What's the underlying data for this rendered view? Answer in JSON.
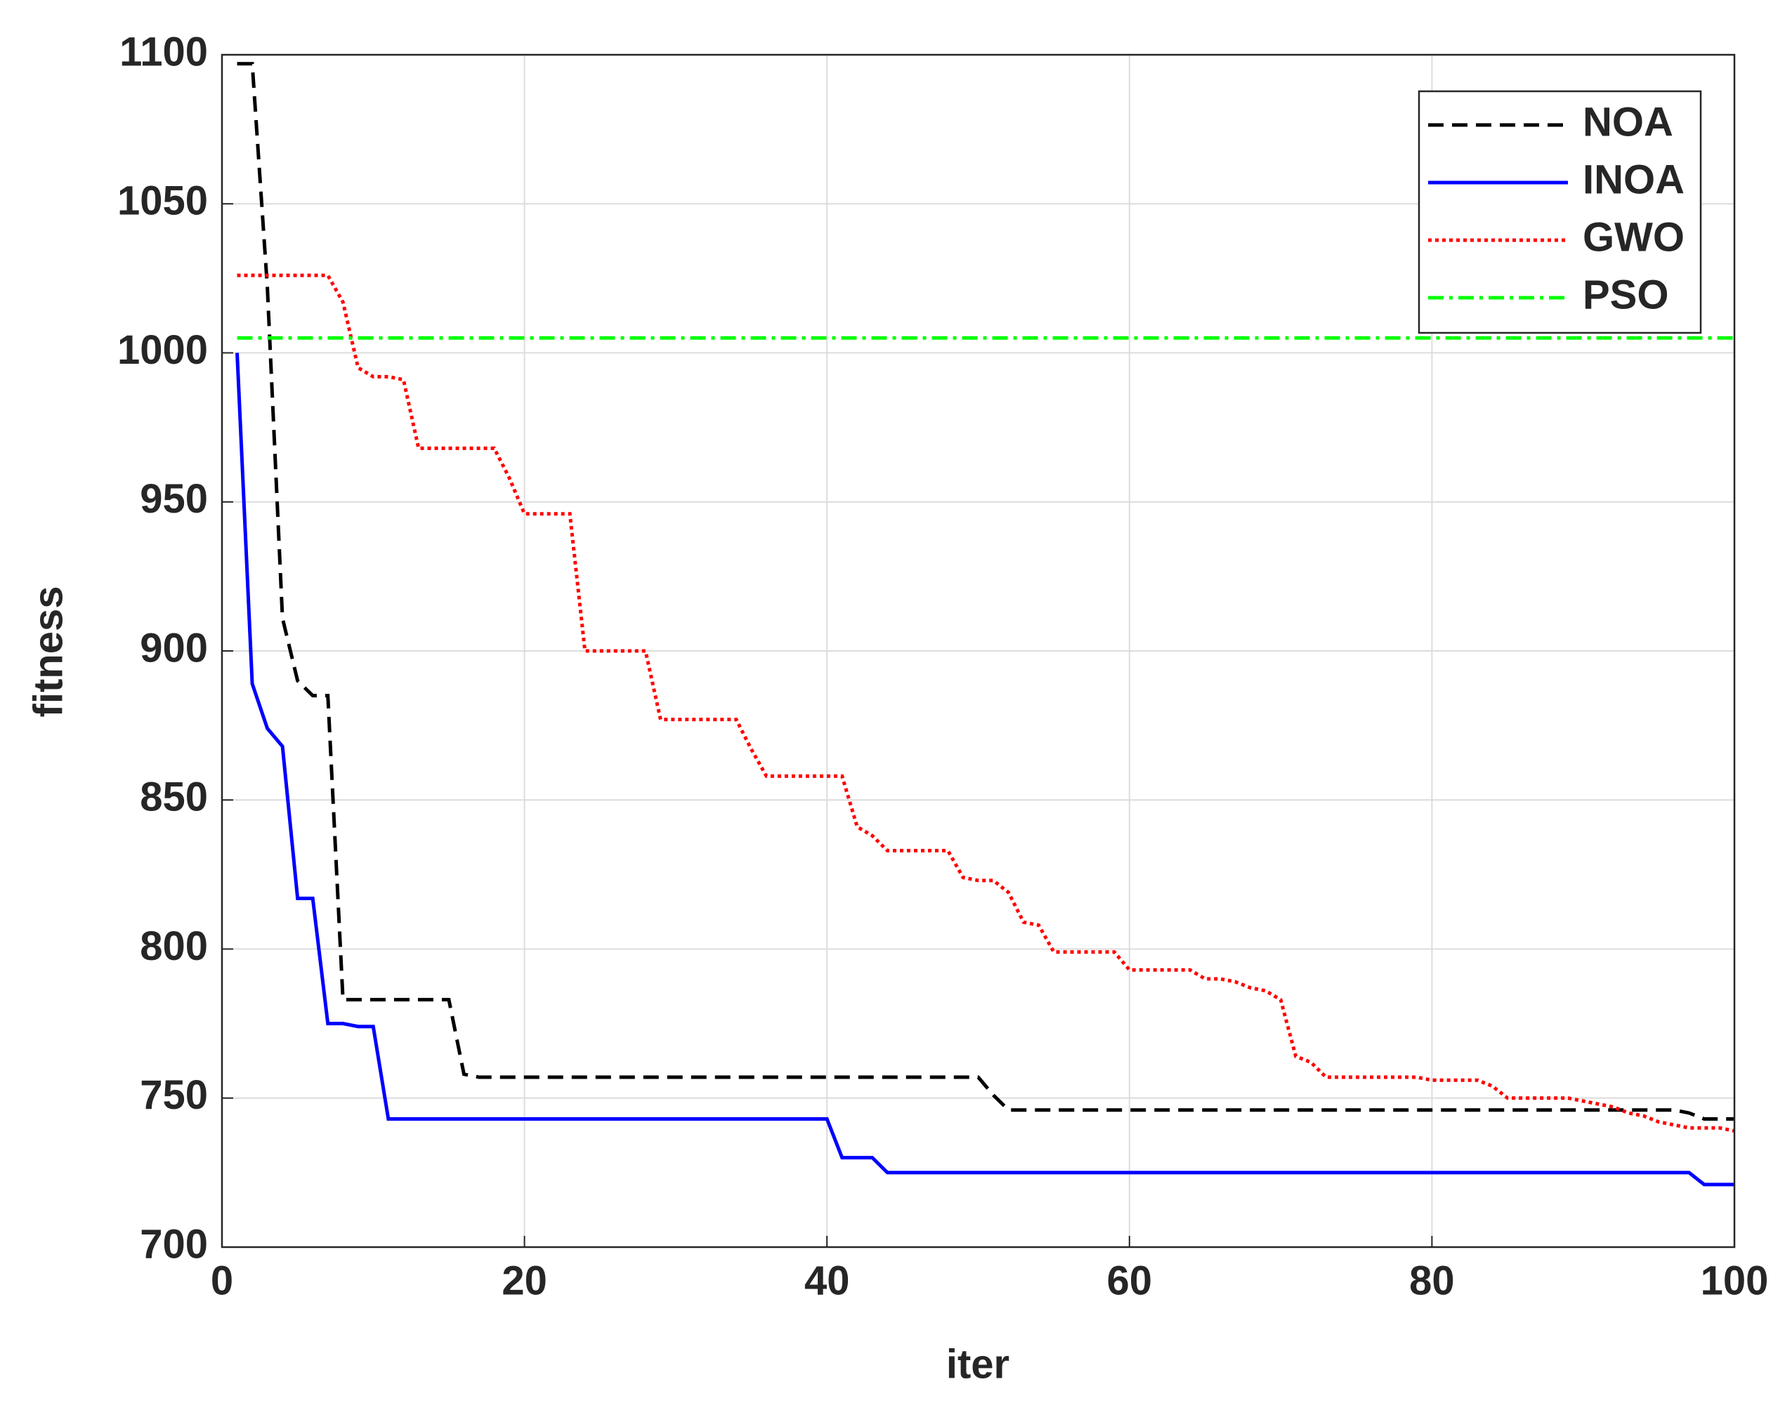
{
  "chart_data": {
    "type": "line",
    "x_label": "iter",
    "y_label": "fitness",
    "x": [
      1,
      2,
      3,
      4,
      5,
      6,
      7,
      8,
      9,
      10,
      11,
      12,
      13,
      14,
      15,
      16,
      17,
      18,
      19,
      20,
      21,
      22,
      23,
      24,
      25,
      26,
      27,
      28,
      29,
      30,
      31,
      32,
      33,
      34,
      35,
      36,
      37,
      38,
      39,
      40,
      41,
      42,
      43,
      44,
      45,
      46,
      47,
      48,
      49,
      50,
      51,
      52,
      53,
      54,
      55,
      56,
      57,
      58,
      59,
      60,
      61,
      62,
      63,
      64,
      65,
      66,
      67,
      68,
      69,
      70,
      71,
      72,
      73,
      74,
      75,
      76,
      77,
      78,
      79,
      80,
      81,
      82,
      83,
      84,
      85,
      86,
      87,
      88,
      89,
      90,
      91,
      92,
      93,
      94,
      95,
      96,
      97,
      98,
      99,
      100
    ],
    "series": [
      {
        "name": "NOA",
        "color": "#000000",
        "style": "dashed",
        "values": [
          1097,
          1097,
          1022,
          911,
          890,
          885,
          885,
          783,
          783,
          783,
          783,
          783,
          783,
          783,
          783,
          758,
          757,
          757,
          757,
          757,
          757,
          757,
          757,
          757,
          757,
          757,
          757,
          757,
          757,
          757,
          757,
          757,
          757,
          757,
          757,
          757,
          757,
          757,
          757,
          757,
          757,
          757,
          757,
          757,
          757,
          757,
          757,
          757,
          757,
          757,
          751,
          746,
          746,
          746,
          746,
          746,
          746,
          746,
          746,
          746,
          746,
          746,
          746,
          746,
          746,
          746,
          746,
          746,
          746,
          746,
          746,
          746,
          746,
          746,
          746,
          746,
          746,
          746,
          746,
          746,
          746,
          746,
          746,
          746,
          746,
          746,
          746,
          746,
          746,
          746,
          746,
          746,
          746,
          746,
          746,
          746,
          745,
          743,
          743,
          743
        ]
      },
      {
        "name": "INOA",
        "color": "#0000ff",
        "style": "solid",
        "values": [
          1000,
          889,
          874,
          868,
          817,
          817,
          775,
          775,
          774,
          774,
          743,
          743,
          743,
          743,
          743,
          743,
          743,
          743,
          743,
          743,
          743,
          743,
          743,
          743,
          743,
          743,
          743,
          743,
          743,
          743,
          743,
          743,
          743,
          743,
          743,
          743,
          743,
          743,
          743,
          743,
          730,
          730,
          730,
          725,
          725,
          725,
          725,
          725,
          725,
          725,
          725,
          725,
          725,
          725,
          725,
          725,
          725,
          725,
          725,
          725,
          725,
          725,
          725,
          725,
          725,
          725,
          725,
          725,
          725,
          725,
          725,
          725,
          725,
          725,
          725,
          725,
          725,
          725,
          725,
          725,
          725,
          725,
          725,
          725,
          725,
          725,
          725,
          725,
          725,
          725,
          725,
          725,
          725,
          725,
          725,
          725,
          725,
          721,
          721,
          721
        ]
      },
      {
        "name": "GWO",
        "color": "#ff0000",
        "style": "dotted",
        "values": [
          1026,
          1026,
          1026,
          1026,
          1026,
          1026,
          1026,
          1017,
          995,
          992,
          992,
          991,
          968,
          968,
          968,
          968,
          968,
          968,
          958,
          946,
          946,
          946,
          946,
          900,
          900,
          900,
          900,
          900,
          877,
          877,
          877,
          877,
          877,
          877,
          867,
          858,
          858,
          858,
          858,
          858,
          858,
          841,
          838,
          833,
          833,
          833,
          833,
          833,
          824,
          823,
          823,
          819,
          809,
          808,
          799,
          799,
          799,
          799,
          799,
          793,
          793,
          793,
          793,
          793,
          790,
          790,
          789,
          787,
          786,
          783,
          764,
          762,
          757,
          757,
          757,
          757,
          757,
          757,
          757,
          756,
          756,
          756,
          756,
          754,
          750,
          750,
          750,
          750,
          750,
          749,
          748,
          747,
          745,
          744,
          742,
          741,
          740,
          740,
          740,
          739
        ]
      },
      {
        "name": "PSO",
        "color": "#00ff00",
        "style": "dashdot",
        "values": [
          1005,
          1005,
          1005,
          1005,
          1005,
          1005,
          1005,
          1005,
          1005,
          1005,
          1005,
          1005,
          1005,
          1005,
          1005,
          1005,
          1005,
          1005,
          1005,
          1005,
          1005,
          1005,
          1005,
          1005,
          1005,
          1005,
          1005,
          1005,
          1005,
          1005,
          1005,
          1005,
          1005,
          1005,
          1005,
          1005,
          1005,
          1005,
          1005,
          1005,
          1005,
          1005,
          1005,
          1005,
          1005,
          1005,
          1005,
          1005,
          1005,
          1005,
          1005,
          1005,
          1005,
          1005,
          1005,
          1005,
          1005,
          1005,
          1005,
          1005,
          1005,
          1005,
          1005,
          1005,
          1005,
          1005,
          1005,
          1005,
          1005,
          1005,
          1005,
          1005,
          1005,
          1005,
          1005,
          1005,
          1005,
          1005,
          1005,
          1005,
          1005,
          1005,
          1005,
          1005,
          1005,
          1005,
          1005,
          1005,
          1005,
          1005,
          1005,
          1005,
          1005,
          1005,
          1005,
          1005,
          1005,
          1005,
          1005,
          1005
        ]
      }
    ],
    "xlim": [
      0,
      100
    ],
    "xticks": [
      0,
      20,
      40,
      60,
      80,
      100
    ],
    "ylim": [
      700,
      1100
    ],
    "yticks": [
      700,
      750,
      800,
      850,
      900,
      950,
      1000,
      1050,
      1100
    ],
    "grid": true,
    "legend": "upper right"
  }
}
